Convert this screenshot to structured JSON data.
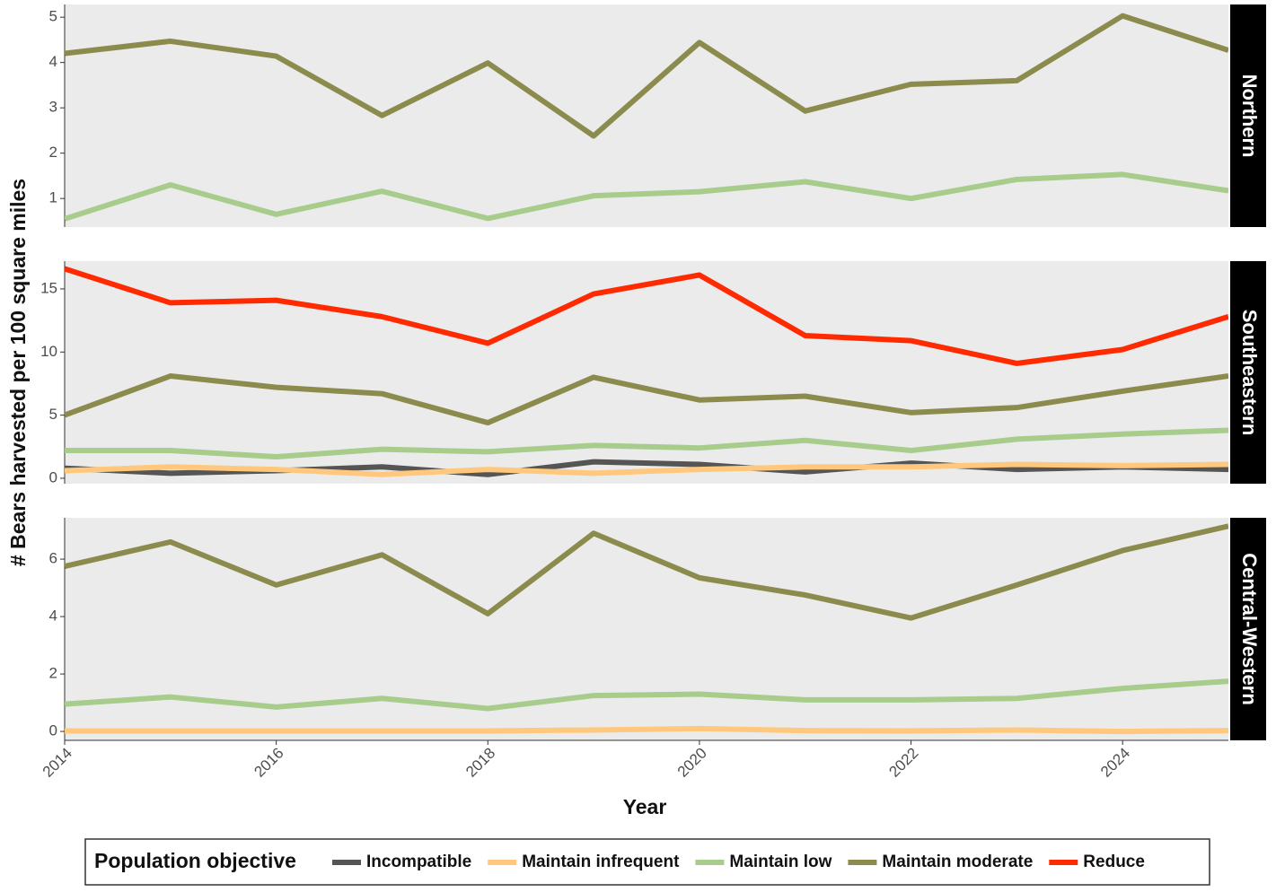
{
  "chart_data": {
    "type": "line",
    "x_label": "Year",
    "y_label": "# Bears harvested per 100 square miles",
    "legend_title": "Population objective",
    "series": [
      {
        "name": "Incompatible",
        "color": "#555555"
      },
      {
        "name": "Maintain infrequent",
        "color": "#ffc87c"
      },
      {
        "name": "Maintain low",
        "color": "#a8cc8c"
      },
      {
        "name": "Maintain moderate",
        "color": "#8b8b4d"
      },
      {
        "name": "Reduce",
        "color": "#ff2a00"
      }
    ],
    "x": [
      2014,
      2015,
      2016,
      2017,
      2018,
      2019,
      2020,
      2021,
      2022,
      2023,
      2024,
      2025
    ],
    "xlim": [
      2014,
      2025
    ],
    "xticks": [
      2014,
      2016,
      2018,
      2020,
      2022,
      2024
    ],
    "panels": [
      {
        "title": "Northern",
        "ylim": [
          0.37,
          5.28
        ],
        "yticks": [
          1,
          2,
          3,
          4,
          5
        ],
        "series": [
          {
            "name": "Maintain low",
            "values": [
              0.55,
              1.3,
              0.65,
              1.16,
              0.56,
              1.06,
              1.15,
              1.37,
              1.0,
              1.42,
              1.53,
              1.17
            ]
          },
          {
            "name": "Maintain moderate",
            "values": [
              4.2,
              4.47,
              4.14,
              2.83,
              3.99,
              2.38,
              4.44,
              2.93,
              3.52,
              3.6,
              5.03,
              4.27
            ]
          }
        ]
      },
      {
        "title": "Southeastern",
        "ylim": [
          -0.43,
          17.2
        ],
        "yticks": [
          0,
          5,
          10,
          15
        ],
        "series": [
          {
            "name": "Incompatible",
            "values": [
              0.8,
              0.4,
              0.6,
              0.9,
              0.3,
              1.3,
              1.1,
              0.5,
              1.2,
              0.7,
              0.9,
              0.7
            ]
          },
          {
            "name": "Maintain infrequent",
            "values": [
              0.6,
              0.9,
              0.7,
              0.3,
              0.7,
              0.4,
              0.7,
              0.9,
              0.9,
              1.1,
              1.0,
              1.1
            ]
          },
          {
            "name": "Maintain low",
            "values": [
              2.2,
              2.2,
              1.7,
              2.3,
              2.1,
              2.6,
              2.4,
              3.0,
              2.2,
              3.1,
              3.5,
              3.8
            ]
          },
          {
            "name": "Maintain moderate",
            "values": [
              5.0,
              8.1,
              7.2,
              6.7,
              4.4,
              8.0,
              6.2,
              6.5,
              5.2,
              5.6,
              6.9,
              8.1
            ]
          },
          {
            "name": "Reduce",
            "values": [
              16.6,
              13.9,
              14.1,
              12.8,
              10.7,
              14.6,
              16.1,
              11.3,
              10.9,
              9.1,
              10.2,
              12.8
            ]
          }
        ]
      },
      {
        "title": "Central-Western",
        "ylim": [
          -0.31,
          7.44
        ],
        "yticks": [
          0,
          2,
          4,
          6
        ],
        "series": [
          {
            "name": "Maintain infrequent",
            "values": [
              0.02,
              0.02,
              0.02,
              0.02,
              0.02,
              0.05,
              0.1,
              0.03,
              0.02,
              0.05,
              0,
              0.03
            ]
          },
          {
            "name": "Maintain low",
            "values": [
              0.95,
              1.2,
              0.85,
              1.15,
              0.8,
              1.25,
              1.3,
              1.1,
              1.1,
              1.15,
              1.5,
              1.75
            ]
          },
          {
            "name": "Maintain moderate",
            "values": [
              5.75,
              6.6,
              5.1,
              6.15,
              4.1,
              6.9,
              5.35,
              4.75,
              3.95,
              5.1,
              6.3,
              7.15
            ]
          }
        ]
      }
    ]
  }
}
